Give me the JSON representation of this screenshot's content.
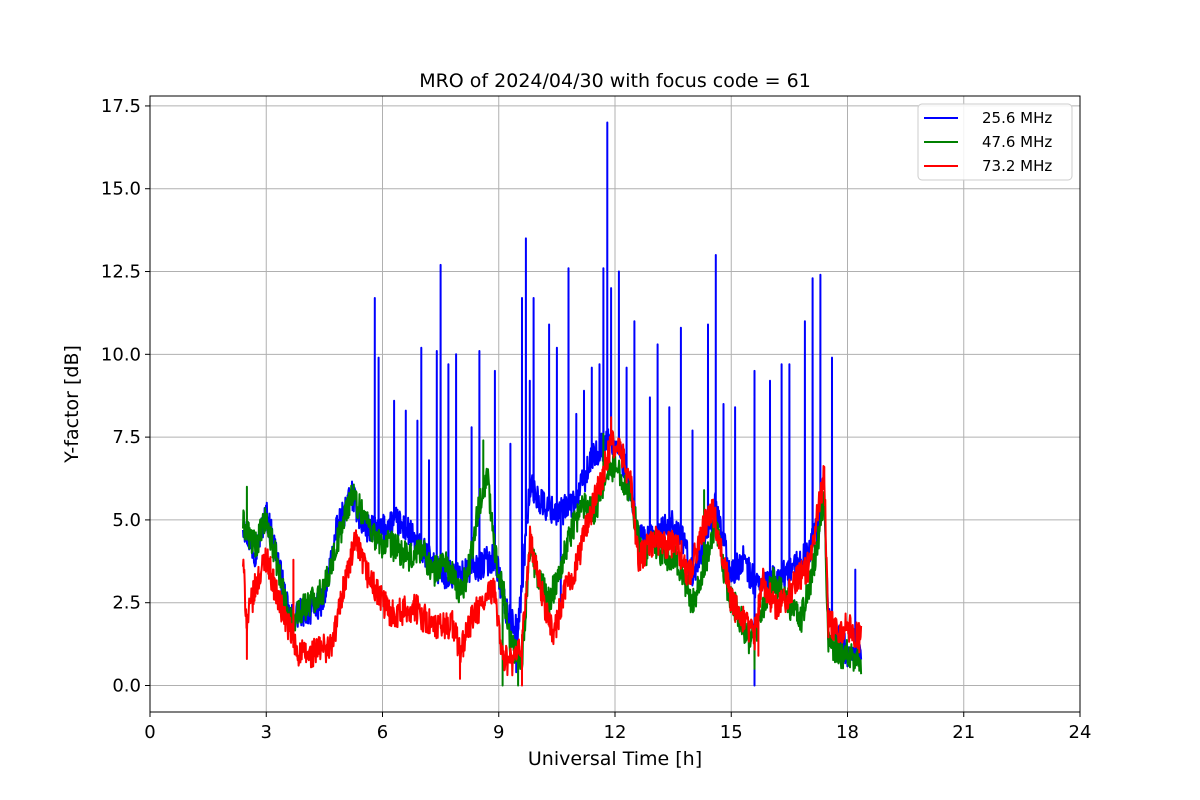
{
  "chart_data": {
    "type": "line",
    "title": "MRO of 2024/04/30 with focus code = 61",
    "xlabel": "Universal Time [h]",
    "ylabel": "Y-factor [dB]",
    "xlim": [
      0,
      24
    ],
    "ylim": [
      -0.8,
      17.8
    ],
    "xticks": [
      0,
      3,
      6,
      9,
      12,
      15,
      18,
      21,
      24
    ],
    "xtick_labels": [
      "0",
      "3",
      "6",
      "9",
      "12",
      "15",
      "18",
      "21",
      "24"
    ],
    "yticks": [
      0,
      2.5,
      5,
      7.5,
      10,
      12.5,
      15,
      17.5
    ],
    "ytick_labels": [
      "0.0",
      "2.5",
      "5.0",
      "7.5",
      "10.0",
      "12.5",
      "15.0",
      "17.5"
    ],
    "grid": true,
    "legend_position": "top-right",
    "series": [
      {
        "name": "25.6 MHz",
        "color": "#0000ff",
        "base": [
          [
            2.4,
            4.9
          ],
          [
            2.7,
            4.0
          ],
          [
            3.0,
            5.2
          ],
          [
            3.3,
            3.8
          ],
          [
            3.6,
            2.0
          ],
          [
            3.9,
            2.2
          ],
          [
            4.2,
            2.3
          ],
          [
            4.5,
            2.6
          ],
          [
            4.8,
            4.6
          ],
          [
            5.2,
            5.8
          ],
          [
            5.5,
            4.8
          ],
          [
            5.9,
            4.6
          ],
          [
            6.3,
            5.0
          ],
          [
            6.7,
            4.6
          ],
          [
            7.0,
            4.1
          ],
          [
            7.5,
            3.4
          ],
          [
            8.0,
            3.3
          ],
          [
            8.5,
            3.6
          ],
          [
            8.9,
            3.9
          ],
          [
            9.2,
            2.2
          ],
          [
            9.5,
            1.6
          ],
          [
            9.8,
            6.0
          ],
          [
            10.2,
            5.4
          ],
          [
            10.6,
            5.2
          ],
          [
            11.0,
            5.6
          ],
          [
            11.4,
            6.8
          ],
          [
            11.8,
            7.4
          ],
          [
            12.1,
            7.1
          ],
          [
            12.4,
            6.0
          ],
          [
            12.6,
            4.4
          ],
          [
            13.0,
            4.4
          ],
          [
            13.4,
            4.9
          ],
          [
            13.7,
            4.6
          ],
          [
            14.0,
            3.3
          ],
          [
            14.3,
            4.4
          ],
          [
            14.6,
            5.4
          ],
          [
            15.0,
            3.3
          ],
          [
            15.3,
            3.8
          ],
          [
            15.6,
            3.1
          ],
          [
            15.9,
            3.1
          ],
          [
            16.2,
            3.2
          ],
          [
            16.6,
            3.5
          ],
          [
            17.0,
            4.0
          ],
          [
            17.4,
            5.4
          ],
          [
            17.5,
            2.1
          ],
          [
            17.8,
            1.4
          ],
          [
            18.0,
            1.0
          ],
          [
            18.35,
            1.0
          ]
        ],
        "peaks": [
          [
            5.8,
            11.7
          ],
          [
            5.9,
            9.9
          ],
          [
            6.3,
            8.6
          ],
          [
            6.6,
            8.3
          ],
          [
            6.9,
            8.0
          ],
          [
            7.0,
            10.2
          ],
          [
            7.2,
            6.8
          ],
          [
            7.4,
            10.1
          ],
          [
            7.5,
            12.7
          ],
          [
            7.7,
            9.7
          ],
          [
            7.9,
            10.0
          ],
          [
            8.3,
            7.8
          ],
          [
            8.5,
            10.1
          ],
          [
            8.9,
            9.5
          ],
          [
            9.3,
            7.3
          ],
          [
            9.6,
            11.7
          ],
          [
            9.7,
            13.5
          ],
          [
            9.8,
            9.2
          ],
          [
            9.9,
            11.7
          ],
          [
            10.3,
            10.9
          ],
          [
            10.5,
            10.2
          ],
          [
            10.8,
            12.6
          ],
          [
            11.0,
            8.2
          ],
          [
            11.2,
            8.9
          ],
          [
            11.4,
            9.6
          ],
          [
            11.6,
            9.7
          ],
          [
            11.7,
            12.6
          ],
          [
            11.8,
            17.0
          ],
          [
            11.9,
            12.0
          ],
          [
            12.1,
            12.5
          ],
          [
            12.3,
            9.6
          ],
          [
            12.5,
            11.0
          ],
          [
            12.9,
            8.7
          ],
          [
            13.1,
            10.3
          ],
          [
            13.4,
            8.4
          ],
          [
            13.7,
            10.8
          ],
          [
            14.0,
            7.7
          ],
          [
            14.4,
            10.9
          ],
          [
            14.6,
            13.0
          ],
          [
            14.8,
            8.5
          ],
          [
            15.1,
            8.4
          ],
          [
            15.6,
            9.5
          ],
          [
            16.0,
            9.2
          ],
          [
            16.3,
            9.7
          ],
          [
            16.5,
            9.7
          ],
          [
            16.9,
            11.0
          ],
          [
            17.1,
            12.3
          ],
          [
            17.3,
            12.4
          ],
          [
            17.6,
            9.9
          ],
          [
            18.2,
            3.5
          ]
        ],
        "dips": [
          [
            9.45,
            0.4
          ],
          [
            10.6,
            2.5
          ],
          [
            15.6,
            0.0
          ],
          [
            17.5,
            1.4
          ]
        ]
      },
      {
        "name": "47.6 MHz",
        "color": "#008000",
        "base": [
          [
            2.4,
            4.9
          ],
          [
            2.7,
            4.2
          ],
          [
            3.0,
            5.0
          ],
          [
            3.3,
            3.6
          ],
          [
            3.6,
            1.9
          ],
          [
            3.9,
            2.3
          ],
          [
            4.2,
            2.6
          ],
          [
            4.5,
            2.9
          ],
          [
            4.8,
            4.2
          ],
          [
            5.2,
            5.8
          ],
          [
            5.5,
            5.2
          ],
          [
            5.9,
            4.3
          ],
          [
            6.3,
            4.2
          ],
          [
            6.7,
            3.8
          ],
          [
            7.0,
            4.2
          ],
          [
            7.3,
            3.4
          ],
          [
            7.6,
            3.8
          ],
          [
            8.0,
            2.8
          ],
          [
            8.2,
            3.4
          ],
          [
            8.5,
            5.5
          ],
          [
            8.7,
            6.4
          ],
          [
            8.9,
            4.0
          ],
          [
            9.1,
            3.0
          ],
          [
            9.3,
            1.3
          ],
          [
            9.6,
            0.7
          ],
          [
            9.8,
            4.2
          ],
          [
            10.0,
            3.3
          ],
          [
            10.3,
            2.5
          ],
          [
            10.6,
            3.6
          ],
          [
            10.9,
            4.8
          ],
          [
            11.2,
            5.5
          ],
          [
            11.5,
            5.3
          ],
          [
            11.8,
            6.6
          ],
          [
            12.1,
            6.5
          ],
          [
            12.4,
            5.8
          ],
          [
            12.7,
            3.8
          ],
          [
            13.0,
            4.4
          ],
          [
            13.3,
            3.8
          ],
          [
            13.6,
            3.8
          ],
          [
            14.0,
            2.5
          ],
          [
            14.3,
            3.6
          ],
          [
            14.6,
            4.8
          ],
          [
            14.9,
            2.9
          ],
          [
            15.2,
            2.1
          ],
          [
            15.5,
            1.3
          ],
          [
            15.8,
            2.2
          ],
          [
            16.1,
            3.2
          ],
          [
            16.4,
            2.6
          ],
          [
            16.8,
            2.0
          ],
          [
            17.1,
            3.4
          ],
          [
            17.4,
            5.6
          ],
          [
            17.5,
            1.4
          ],
          [
            17.8,
            0.9
          ],
          [
            18.0,
            1.0
          ],
          [
            18.35,
            0.7
          ]
        ],
        "peaks": [
          [
            2.5,
            6.0
          ],
          [
            8.6,
            7.4
          ],
          [
            11.7,
            7.6
          ],
          [
            14.3,
            5.9
          ]
        ],
        "dips": [
          [
            9.1,
            0.0
          ],
          [
            9.5,
            0.0
          ],
          [
            15.6,
            0.5
          ],
          [
            17.7,
            0.8
          ]
        ]
      },
      {
        "name": "73.2 MHz",
        "color": "#ff0000",
        "base": [
          [
            2.4,
            3.7
          ],
          [
            2.5,
            1.9
          ],
          [
            2.7,
            2.9
          ],
          [
            3.0,
            3.9
          ],
          [
            3.3,
            2.6
          ],
          [
            3.6,
            1.7
          ],
          [
            3.8,
            1.0
          ],
          [
            4.1,
            0.9
          ],
          [
            4.4,
            1.1
          ],
          [
            4.7,
            1.2
          ],
          [
            5.0,
            3.0
          ],
          [
            5.3,
            4.3
          ],
          [
            5.6,
            3.4
          ],
          [
            5.9,
            2.7
          ],
          [
            6.2,
            2.2
          ],
          [
            6.5,
            2.2
          ],
          [
            6.8,
            2.4
          ],
          [
            7.1,
            2.0
          ],
          [
            7.4,
            1.7
          ],
          [
            7.8,
            1.9
          ],
          [
            8.0,
            1.0
          ],
          [
            8.3,
            2.0
          ],
          [
            8.6,
            2.5
          ],
          [
            8.9,
            2.9
          ],
          [
            9.1,
            0.8
          ],
          [
            9.4,
            0.7
          ],
          [
            9.6,
            1.2
          ],
          [
            9.8,
            4.4
          ],
          [
            10.1,
            2.8
          ],
          [
            10.4,
            1.5
          ],
          [
            10.7,
            2.8
          ],
          [
            11.0,
            3.6
          ],
          [
            11.3,
            5.0
          ],
          [
            11.6,
            6.0
          ],
          [
            11.9,
            7.3
          ],
          [
            12.1,
            7.2
          ],
          [
            12.4,
            6.2
          ],
          [
            12.6,
            3.8
          ],
          [
            13.0,
            4.4
          ],
          [
            13.3,
            4.2
          ],
          [
            13.6,
            4.3
          ],
          [
            13.9,
            3.3
          ],
          [
            14.2,
            4.5
          ],
          [
            14.5,
            5.4
          ],
          [
            14.8,
            3.9
          ],
          [
            15.0,
            2.5
          ],
          [
            15.3,
            2.0
          ],
          [
            15.6,
            1.5
          ],
          [
            15.8,
            3.2
          ],
          [
            16.1,
            2.4
          ],
          [
            16.4,
            2.6
          ],
          [
            16.7,
            3.2
          ],
          [
            17.0,
            3.6
          ],
          [
            17.4,
            6.4
          ],
          [
            17.5,
            1.9
          ],
          [
            17.8,
            1.7
          ],
          [
            18.0,
            1.8
          ],
          [
            18.35,
            1.4
          ]
        ],
        "peaks": [
          [
            3.7,
            3.8
          ],
          [
            5.3,
            4.6
          ],
          [
            11.9,
            8.1
          ],
          [
            14.5,
            5.6
          ],
          [
            17.4,
            6.6
          ]
        ],
        "dips": [
          [
            2.5,
            0.8
          ],
          [
            8.0,
            0.2
          ],
          [
            9.6,
            0.0
          ],
          [
            15.7,
            0.9
          ]
        ]
      }
    ]
  }
}
